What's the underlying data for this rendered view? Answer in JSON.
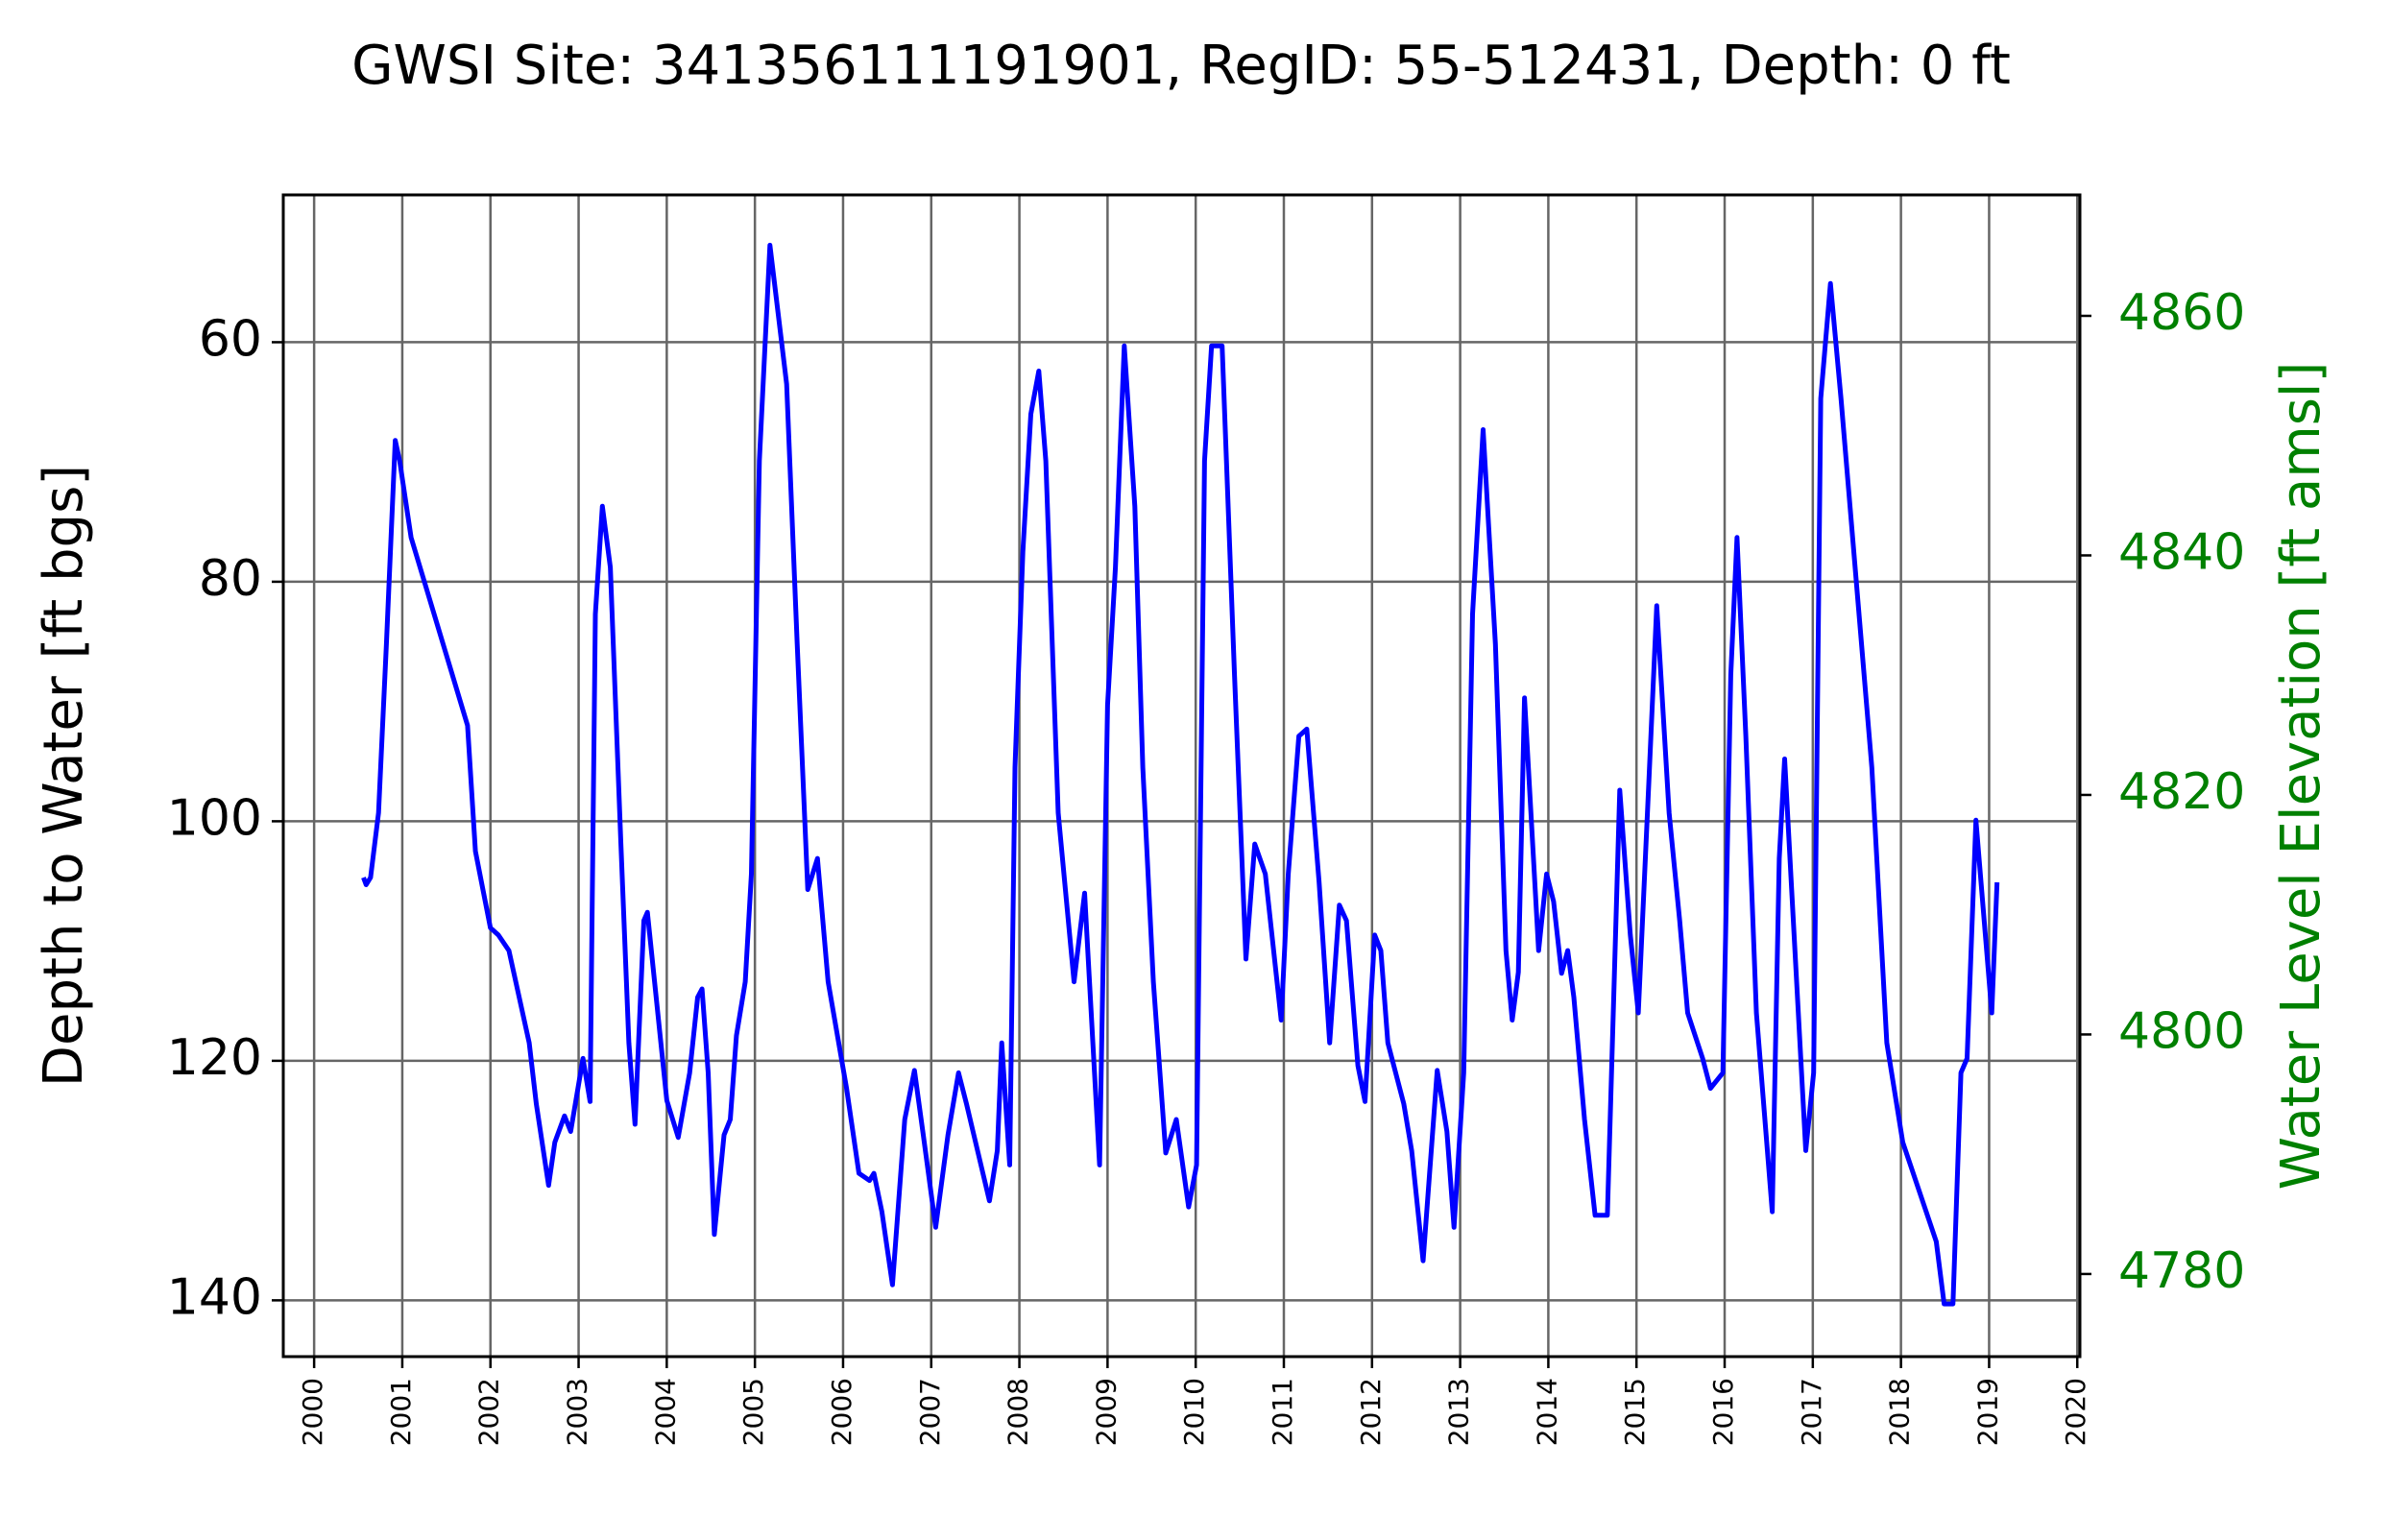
{
  "chart_data": {
    "type": "line",
    "title": "GWSI Site: 341356111191901, RegID: 55-512431, Depth: 0 ft",
    "ylabel": "Depth to Water [ft bgs]",
    "y2label": "Water Level Elevation [ft amsl]",
    "color": "#0000ff",
    "y2color": "#008000",
    "grid": true,
    "xlim": [
      1999.65,
      2020.03
    ],
    "xticks": [
      2000,
      2001,
      2002,
      2003,
      2004,
      2005,
      2006,
      2007,
      2008,
      2009,
      2010,
      2011,
      2012,
      2013,
      2014,
      2015,
      2016,
      2017,
      2018,
      2019,
      2020
    ],
    "ylim": [
      144.7,
      47.7
    ],
    "yticks": [
      60,
      80,
      100,
      120,
      140
    ],
    "y2lim": [
      4773.1,
      4870.1
    ],
    "y2ticks": [
      4780,
      4800,
      4820,
      4840,
      4860
    ],
    "x": [
      2000.56,
      2000.59,
      2000.64,
      2000.73,
      2000.82,
      2000.92,
      2000.97,
      2001.1,
      2001.74,
      2001.83,
      2002.0,
      2002.09,
      2002.21,
      2002.44,
      2002.52,
      2002.66,
      2002.73,
      2002.84,
      2002.91,
      2003.05,
      2003.13,
      2003.19,
      2003.27,
      2003.36,
      2003.48,
      2003.57,
      2003.64,
      2003.74,
      2003.78,
      2004.0,
      2004.13,
      2004.26,
      2004.35,
      2004.4,
      2004.47,
      2004.54,
      2004.65,
      2004.72,
      2004.79,
      2004.89,
      2004.96,
      2005.05,
      2005.17,
      2005.36,
      2005.48,
      2005.6,
      2005.71,
      2005.83,
      2006.04,
      2006.18,
      2006.3,
      2006.35,
      2006.44,
      2006.56,
      2006.7,
      2006.81,
      2006.91,
      2007.05,
      2007.19,
      2007.31,
      2007.4,
      2007.66,
      2007.75,
      2007.8,
      2007.89,
      2007.95,
      2008.04,
      2008.13,
      2008.22,
      2008.3,
      2008.44,
      2008.62,
      2008.74,
      2008.91,
      2009.0,
      2009.09,
      2009.19,
      2009.31,
      2009.4,
      2009.52,
      2009.66,
      2009.78,
      2009.92,
      2010.01,
      2010.1,
      2010.18,
      2010.3,
      2010.44,
      2010.57,
      2010.67,
      2010.79,
      2010.97,
      2011.05,
      2011.17,
      2011.26,
      2011.4,
      2011.52,
      2011.63,
      2011.71,
      2011.84,
      2011.92,
      2012.03,
      2012.1,
      2012.18,
      2012.36,
      2012.45,
      2012.58,
      2012.74,
      2012.85,
      2012.93,
      2013.04,
      2013.14,
      2013.26,
      2013.4,
      2013.52,
      2013.59,
      2013.66,
      2013.73,
      2013.89,
      2013.98,
      2014.06,
      2014.15,
      2014.22,
      2014.29,
      2014.41,
      2014.53,
      2014.67,
      2014.81,
      2014.93,
      2015.02,
      2015.14,
      2015.23,
      2015.37,
      2015.49,
      2015.58,
      2015.75,
      2015.84,
      2015.98,
      2016.07,
      2016.14,
      2016.24,
      2016.36,
      2016.54,
      2016.62,
      2016.68,
      2016.76,
      2016.92,
      2017.01,
      2017.09,
      2017.2,
      2017.32,
      2017.67,
      2017.84,
      2018.02,
      2018.4,
      2018.49,
      2018.59,
      2018.68,
      2018.75,
      2018.85,
      2019.03,
      2019.09
    ],
    "values": [
      104.7,
      105.3,
      104.7,
      99.3,
      85.2,
      68.2,
      69.9,
      76.3,
      92.0,
      102.5,
      108.9,
      109.5,
      110.8,
      118.5,
      123.6,
      130.4,
      126.8,
      124.6,
      125.9,
      119.8,
      123.4,
      82.7,
      73.7,
      78.8,
      101.9,
      118.5,
      125.3,
      108.3,
      107.6,
      123.3,
      126.4,
      121.0,
      114.7,
      114.0,
      121.0,
      134.5,
      126.2,
      124.9,
      117.9,
      113.4,
      104.4,
      69.9,
      51.9,
      63.5,
      85.2,
      105.7,
      103.1,
      113.4,
      122.3,
      129.4,
      130.0,
      129.4,
      132.6,
      138.7,
      124.9,
      120.8,
      126.2,
      133.9,
      126.2,
      121.0,
      123.6,
      131.7,
      127.5,
      118.5,
      128.7,
      95.5,
      77.5,
      66.0,
      62.4,
      69.9,
      99.3,
      113.4,
      106.0,
      128.7,
      90.3,
      78.8,
      60.3,
      73.7,
      95.5,
      113.4,
      127.7,
      124.9,
      132.2,
      128.7,
      69.9,
      60.3,
      60.3,
      87.8,
      111.5,
      101.9,
      104.4,
      116.6,
      104.4,
      92.9,
      92.3,
      105.1,
      118.5,
      107.0,
      108.3,
      120.4,
      123.4,
      109.5,
      110.8,
      118.5,
      123.6,
      127.5,
      136.7,
      120.8,
      125.9,
      133.9,
      121.0,
      82.7,
      67.3,
      85.2,
      110.8,
      116.6,
      112.6,
      89.7,
      110.8,
      104.4,
      106.7,
      112.7,
      110.8,
      114.7,
      124.9,
      132.9,
      132.9,
      97.4,
      109.5,
      116.0,
      96.7,
      82.0,
      99.3,
      108.3,
      116.0,
      119.8,
      122.3,
      121.0,
      87.8,
      76.3,
      92.9,
      116.0,
      132.6,
      103.1,
      94.8,
      105.7,
      127.5,
      121.0,
      64.7,
      55.1,
      64.7,
      95.5,
      118.5,
      126.8,
      135.1,
      140.3,
      140.3,
      121.0,
      119.8,
      99.9,
      116.0,
      105.1
    ]
  }
}
